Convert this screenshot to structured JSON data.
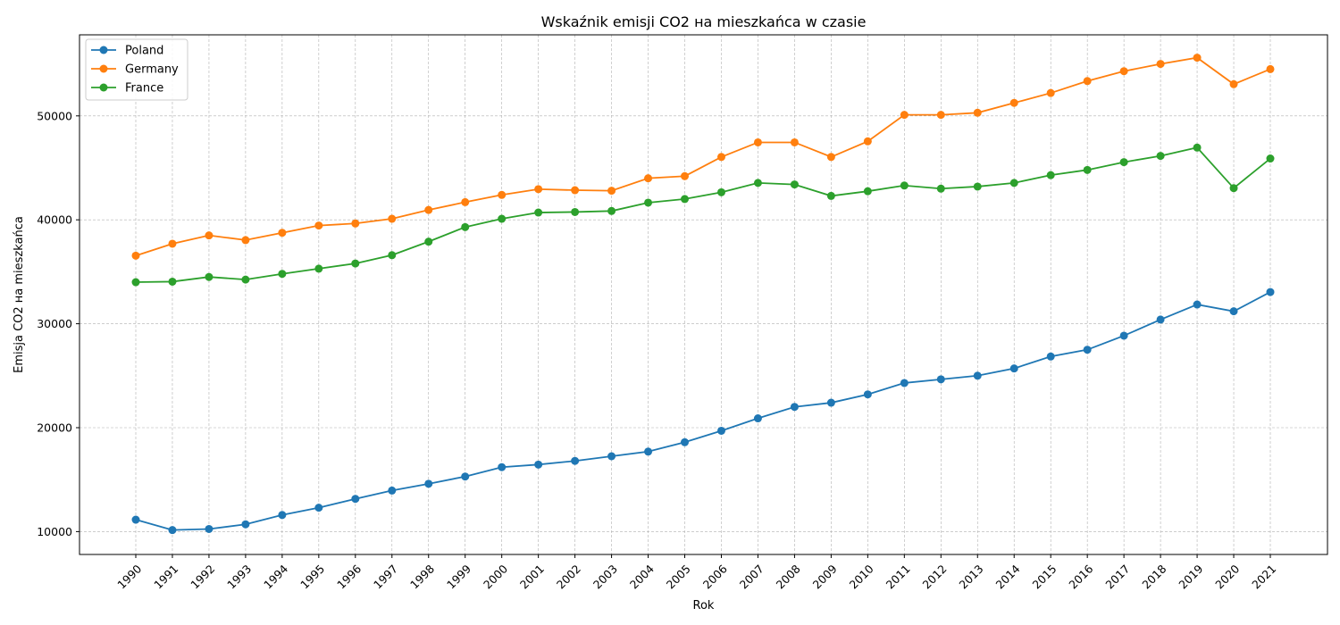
{
  "chart_data": {
    "type": "line",
    "title": "Wskaźnik emisji CO2 на mieszkańca w czasie",
    "xlabel": "Rok",
    "ylabel": "Emisja CO2 на mieszkańca",
    "categories": [
      "1990",
      "1991",
      "1992",
      "1993",
      "1994",
      "1995",
      "1996",
      "1997",
      "1998",
      "1999",
      "2000",
      "2001",
      "2002",
      "2003",
      "2004",
      "2005",
      "2006",
      "2007",
      "2008",
      "2009",
      "2010",
      "2011",
      "2012",
      "2013",
      "2014",
      "2015",
      "2016",
      "2017",
      "2018",
      "2019",
      "2020",
      "2021"
    ],
    "yticks": [
      10000,
      20000,
      30000,
      40000,
      50000
    ],
    "ylim": [
      7800,
      57800
    ],
    "grid": true,
    "legend_position": "top-left",
    "series": [
      {
        "name": "Poland",
        "color": "#1f77b4",
        "values": [
          11150,
          10150,
          10250,
          10700,
          11600,
          12300,
          13150,
          13950,
          14600,
          15300,
          16200,
          16450,
          16800,
          17250,
          17700,
          18600,
          19700,
          20900,
          22000,
          22400,
          23200,
          24300,
          24650,
          25000,
          25700,
          26850,
          27500,
          28850,
          30400,
          31850,
          31200,
          33050
        ]
      },
      {
        "name": "Germany",
        "color": "#ff7f0e",
        "values": [
          36550,
          37700,
          38500,
          38050,
          38750,
          39450,
          39650,
          40100,
          40950,
          41700,
          42400,
          42950,
          42850,
          42800,
          44000,
          44200,
          46050,
          47450,
          47450,
          46050,
          47550,
          50100,
          50100,
          50300,
          51250,
          52200,
          53350,
          54300,
          55000,
          55600,
          53050,
          54500
        ]
      },
      {
        "name": "France",
        "color": "#2ca02c",
        "values": [
          34000,
          34050,
          34500,
          34250,
          34800,
          35300,
          35800,
          36600,
          37900,
          39300,
          40100,
          40700,
          40750,
          40850,
          41650,
          42000,
          42650,
          43550,
          43400,
          42300,
          42750,
          43300,
          43000,
          43200,
          43550,
          44300,
          44800,
          45550,
          46150,
          46950,
          43050,
          45900
        ]
      }
    ]
  }
}
